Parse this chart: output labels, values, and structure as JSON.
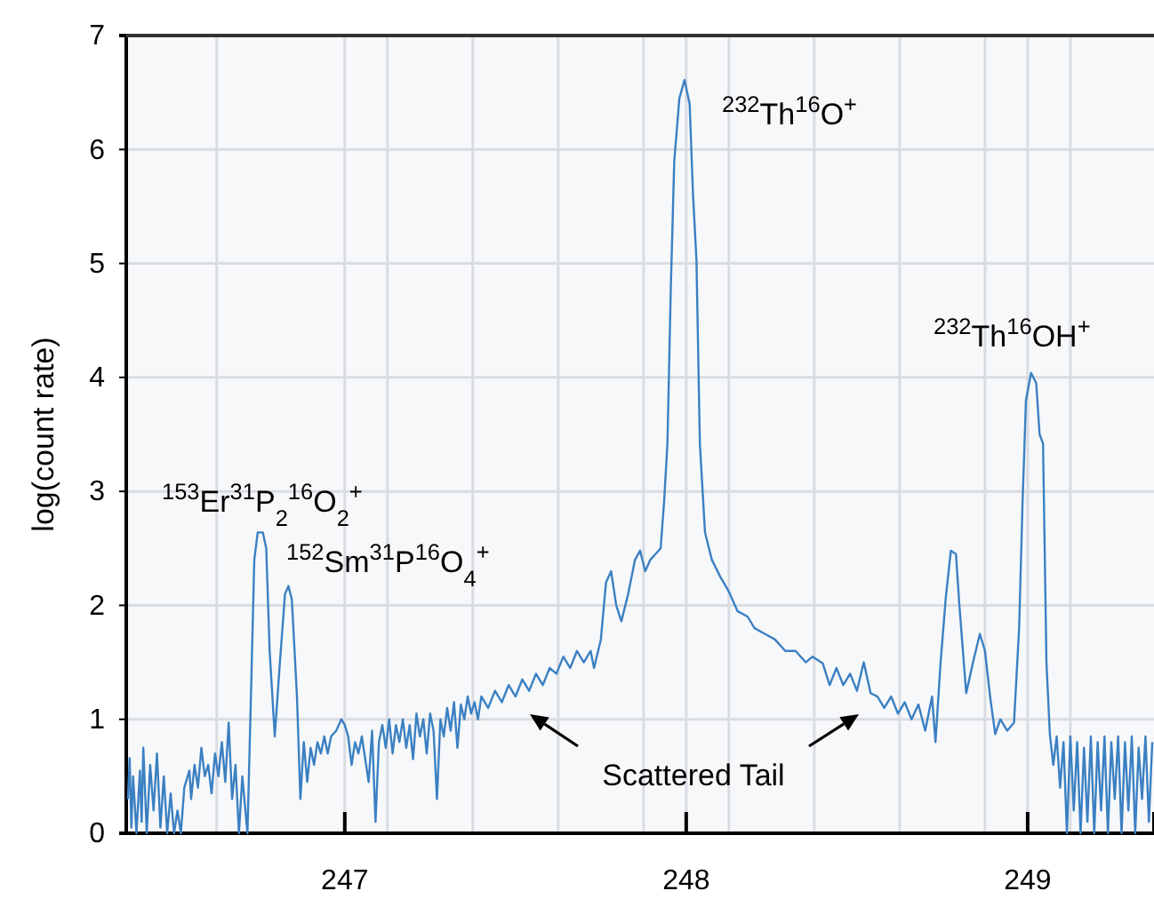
{
  "chart_data": {
    "type": "line",
    "ylabel": "log(count rate)",
    "xlim": [
      246.36,
      249.37
    ],
    "ylim": [
      0,
      7
    ],
    "xticks": [
      {
        "value": 246.625,
        "label": null
      },
      247,
      {
        "value": 247.125,
        "label": null
      },
      {
        "value": 247.375,
        "label": null
      },
      {
        "value": 247.625,
        "label": null
      },
      {
        "value": 247.875,
        "label": null
      },
      248,
      {
        "value": 248.125,
        "label": null
      },
      {
        "value": 248.375,
        "label": null
      },
      {
        "value": 248.625,
        "label": null
      },
      {
        "value": 248.875,
        "label": null
      },
      249,
      {
        "value": 249.125,
        "label": null
      }
    ],
    "yticks": [
      0,
      1,
      2,
      3,
      4,
      5,
      6,
      7
    ],
    "grid": true,
    "marker": "none",
    "line_style": "solid",
    "annotations": [
      "$^{153}$Er$^{31}$P$_{2}$$^{16}$O$_{2}$$^{+}$",
      "$^{152}$Sm$^{31}$P$^{16}$O$_{4}$$^{+}$",
      "$^{232}$Th$^{16}$O$^{+}$",
      "$^{232}$Th$^{16}$OH$^{+}$",
      "Scattered Tail"
    ],
    "series": [
      {
        "color": "#3b80c2",
        "x": [
          246.365,
          246.37,
          246.375,
          246.38,
          246.39,
          246.4,
          246.405,
          246.41,
          246.42,
          246.43,
          246.44,
          246.45,
          246.46,
          246.47,
          246.48,
          246.49,
          246.5,
          246.51,
          246.52,
          246.53,
          246.545,
          246.55,
          246.56,
          246.57,
          246.58,
          246.59,
          246.6,
          246.61,
          246.62,
          246.63,
          246.64,
          246.65,
          246.66,
          246.67,
          246.68,
          246.69,
          246.7,
          246.715,
          246.725,
          246.735,
          246.745,
          246.76,
          246.77,
          246.78,
          246.795,
          246.81,
          246.825,
          246.835,
          246.845,
          246.86,
          246.87,
          246.88,
          246.89,
          246.9,
          246.91,
          246.92,
          246.93,
          246.94,
          246.95,
          246.96,
          246.975,
          246.99,
          247,
          247.01,
          247.02,
          247.03,
          247.04,
          247.05,
          247.06,
          247.07,
          247.08,
          247.09,
          247.1,
          247.11,
          247.12,
          247.13,
          247.14,
          247.15,
          247.16,
          247.17,
          247.18,
          247.19,
          247.2,
          247.21,
          247.22,
          247.23,
          247.24,
          247.25,
          247.26,
          247.27,
          247.28,
          247.29,
          247.3,
          247.31,
          247.32,
          247.33,
          247.34,
          247.35,
          247.36,
          247.37,
          247.38,
          247.39,
          247.4,
          247.42,
          247.44,
          247.46,
          247.48,
          247.5,
          247.52,
          247.54,
          247.56,
          247.58,
          247.6,
          247.62,
          247.64,
          247.66,
          247.68,
          247.7,
          247.72,
          247.73,
          247.75,
          247.765,
          247.78,
          247.795,
          247.81,
          247.83,
          247.85,
          247.865,
          247.88,
          247.895,
          247.91,
          247.925,
          247.935,
          247.945,
          247.955,
          247.965,
          247.98,
          247.995,
          248.01,
          248.02,
          248.03,
          248.04,
          248.055,
          248.075,
          248.1,
          248.125,
          248.15,
          248.18,
          248.2,
          248.23,
          248.26,
          248.29,
          248.32,
          248.35,
          248.37,
          248.4,
          248.42,
          248.44,
          248.46,
          248.48,
          248.5,
          248.52,
          248.54,
          248.56,
          248.58,
          248.6,
          248.62,
          248.64,
          248.66,
          248.68,
          248.7,
          248.72,
          248.73,
          248.745,
          248.76,
          248.775,
          248.79,
          248.8,
          248.82,
          248.84,
          248.86,
          248.875,
          248.89,
          248.905,
          248.92,
          248.94,
          248.96,
          248.975,
          248.985,
          248.995,
          249.01,
          249.025,
          249.035,
          249.045,
          249.055,
          249.065,
          249.075,
          249.085,
          249.095,
          249.105,
          249.115,
          249.125,
          249.135,
          249.145,
          249.155,
          249.165,
          249.175,
          249.185,
          249.195,
          249.205,
          249.215,
          249.225,
          249.235,
          249.245,
          249.255,
          249.265,
          249.275,
          249.285,
          249.295,
          249.305,
          249.315,
          249.325,
          249.335,
          249.345,
          249.355,
          249.365
        ],
        "values": [
          0.3,
          0.66,
          0.05,
          0.5,
          0,
          0.55,
          0.1,
          0.75,
          0,
          0.6,
          0.2,
          0.7,
          0.05,
          0.5,
          0,
          0.35,
          0,
          0.2,
          0,
          0.4,
          0.55,
          0.3,
          0.6,
          0.4,
          0.75,
          0.5,
          0.6,
          0.35,
          0.7,
          0.5,
          0.8,
          0.45,
          0.97,
          0.3,
          0.6,
          0,
          0.5,
          0,
          1.18,
          2.4,
          2.64,
          2.64,
          2.5,
          1.6,
          0.85,
          1.5,
          2.1,
          2.17,
          2.05,
          1.2,
          0.3,
          0.8,
          0.45,
          0.75,
          0.6,
          0.8,
          0.7,
          0.85,
          0.7,
          0.85,
          0.9,
          1,
          0.95,
          0.85,
          0.6,
          0.8,
          0.7,
          0.85,
          0.65,
          0.45,
          0.9,
          0.1,
          0.8,
          0.95,
          0.75,
          1,
          0.7,
          0.95,
          0.8,
          1,
          0.75,
          0.95,
          0.65,
          1.05,
          0.85,
          1,
          0.7,
          1.05,
          0.9,
          0.3,
          1,
          0.85,
          1.1,
          0.9,
          1.15,
          0.75,
          1.13,
          1,
          1.2,
          1.05,
          1.15,
          1,
          1.2,
          1.1,
          1.25,
          1.15,
          1.3,
          1.2,
          1.35,
          1.25,
          1.4,
          1.3,
          1.45,
          1.4,
          1.55,
          1.45,
          1.6,
          1.5,
          1.6,
          1.45,
          1.7,
          2.2,
          2.3,
          2,
          1.86,
          2.1,
          2.4,
          2.48,
          2.3,
          2.4,
          2.45,
          2.5,
          2.9,
          3.42,
          4.8,
          5.9,
          6.45,
          6.61,
          6.4,
          5.6,
          5.03,
          3.42,
          2.64,
          2.4,
          2.25,
          2.12,
          1.95,
          1.9,
          1.8,
          1.75,
          1.7,
          1.6,
          1.6,
          1.5,
          1.55,
          1.49,
          1.3,
          1.45,
          1.3,
          1.4,
          1.25,
          1.5,
          1.23,
          1.2,
          1.1,
          1.2,
          1.05,
          1.15,
          1,
          1.13,
          0.9,
          1.2,
          0.8,
          1.5,
          2.06,
          2.48,
          2.45,
          2,
          1.23,
          1.5,
          1.75,
          1.6,
          1.2,
          0.87,
          1,
          0.9,
          0.97,
          1.8,
          2.9,
          3.8,
          4.04,
          3.95,
          3.5,
          3.42,
          1.5,
          0.87,
          0.6,
          0.85,
          0.4,
          0.8,
          0,
          0.85,
          0.2,
          0.8,
          0,
          0.75,
          0.1,
          0.85,
          0,
          0.8,
          0.2,
          0.85,
          0,
          0.8,
          0.3,
          0.85,
          0,
          0.8,
          0.2,
          0.85,
          0,
          0.75,
          0.3,
          0.85,
          0.1,
          0.8
        ]
      }
    ]
  }
}
